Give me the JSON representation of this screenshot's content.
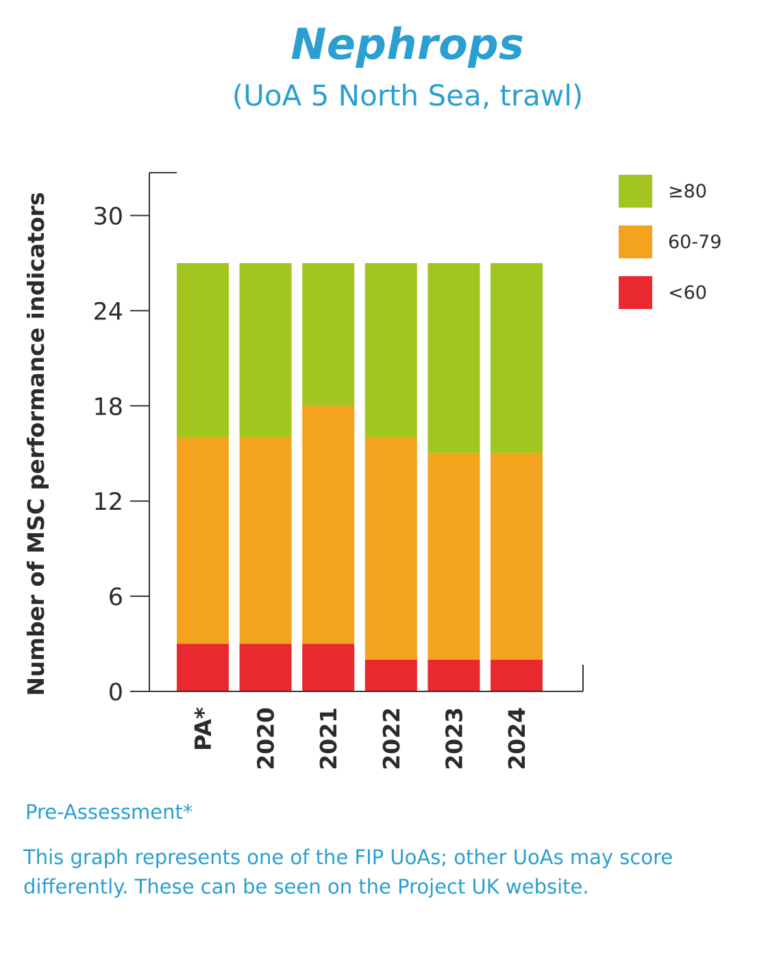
{
  "header": {
    "title": "Nephrops",
    "subtitle": "(UoA 5 North Sea, trawl)"
  },
  "colors": {
    "title": "#2a9fd0",
    "green": "#a2c61f",
    "orange": "#f4a31e",
    "red": "#e8292f",
    "axis": "#333333"
  },
  "chart_data": {
    "type": "bar",
    "stacked": true,
    "categories": [
      "PA*",
      "2020",
      "2021",
      "2022",
      "2023",
      "2024"
    ],
    "series": [
      {
        "name": "<60",
        "color": "#e8292f",
        "values": [
          3,
          3,
          3,
          2,
          2,
          2
        ]
      },
      {
        "name": "60-79",
        "color": "#f4a31e",
        "values": [
          13,
          13,
          15,
          14,
          13,
          13
        ]
      },
      {
        "name": ">=80",
        "label": "≥80",
        "color": "#a2c61f",
        "values": [
          11,
          11,
          9,
          11,
          12,
          12
        ]
      }
    ],
    "legend": [
      {
        "label": "≥80",
        "color": "#a2c61f"
      },
      {
        "label": "60-79",
        "color": "#f4a31e"
      },
      {
        "label": "<60",
        "color": "#e8292f"
      }
    ],
    "legend_position": "top-right",
    "ylabel": "Number of MSC performance indicators",
    "xlabel": "",
    "yticks": [
      0,
      6,
      12,
      18,
      24,
      30
    ],
    "ylim": [
      0,
      32.7
    ],
    "grid": false
  },
  "footer": {
    "note1": "Pre-Assessment*",
    "note2": "This graph represents one of the FIP UoAs; other UoAs may score differently. These can be seen on the Project UK website."
  }
}
